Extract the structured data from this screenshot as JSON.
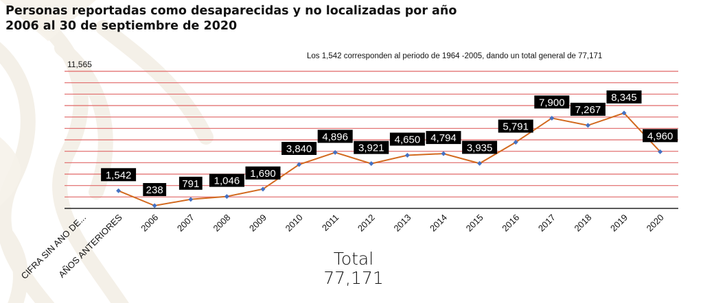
{
  "title": {
    "line1": "Personas reportadas como desaparecidas y no localizadas por año",
    "line2": "2006 al 30 de septiembre de 2020"
  },
  "note": "Los 1,542 corresponden al periodo de 1964 -2005, dando un total general de 77,171",
  "total": {
    "label": "Total",
    "value": "77,171"
  },
  "colors": {
    "line": "#D2691E",
    "marker": "#4472C4",
    "grid": "#E06666",
    "axis": "#222222",
    "label_bg": "#000000",
    "label_text": "#ffffff"
  },
  "chart_data": {
    "type": "line",
    "title": "Personas reportadas como desaparecidas y no localizadas por año 2006 al 30 de septiembre de 2020",
    "xlabel": "",
    "ylabel": "",
    "y_axis_label": "11,565",
    "ylim": [
      0,
      12000
    ],
    "grid": true,
    "grid_step": 1000,
    "categories": [
      "CIFRA SIN ANO DE...",
      "AÑOS ANTERIORES",
      "2006",
      "2007",
      "2008",
      "2009",
      "2010",
      "2011",
      "2012",
      "2013",
      "2014",
      "2015",
      "2016",
      "2017",
      "2018",
      "2019",
      "2020"
    ],
    "series": [
      {
        "name": "Personas reportadas",
        "values": [
          null,
          1542,
          238,
          791,
          1046,
          1690,
          3840,
          4896,
          3921,
          4650,
          4794,
          3935,
          5791,
          7900,
          7267,
          8345,
          4960
        ],
        "labels": [
          "",
          "1,542",
          "238",
          "791",
          "1,046",
          "1,690",
          "3,840",
          "4,896",
          "3,921",
          "4,650",
          "4,794",
          "3,935",
          "5,791",
          "7,900",
          "7,267",
          "8,345",
          "4,960"
        ]
      }
    ]
  }
}
